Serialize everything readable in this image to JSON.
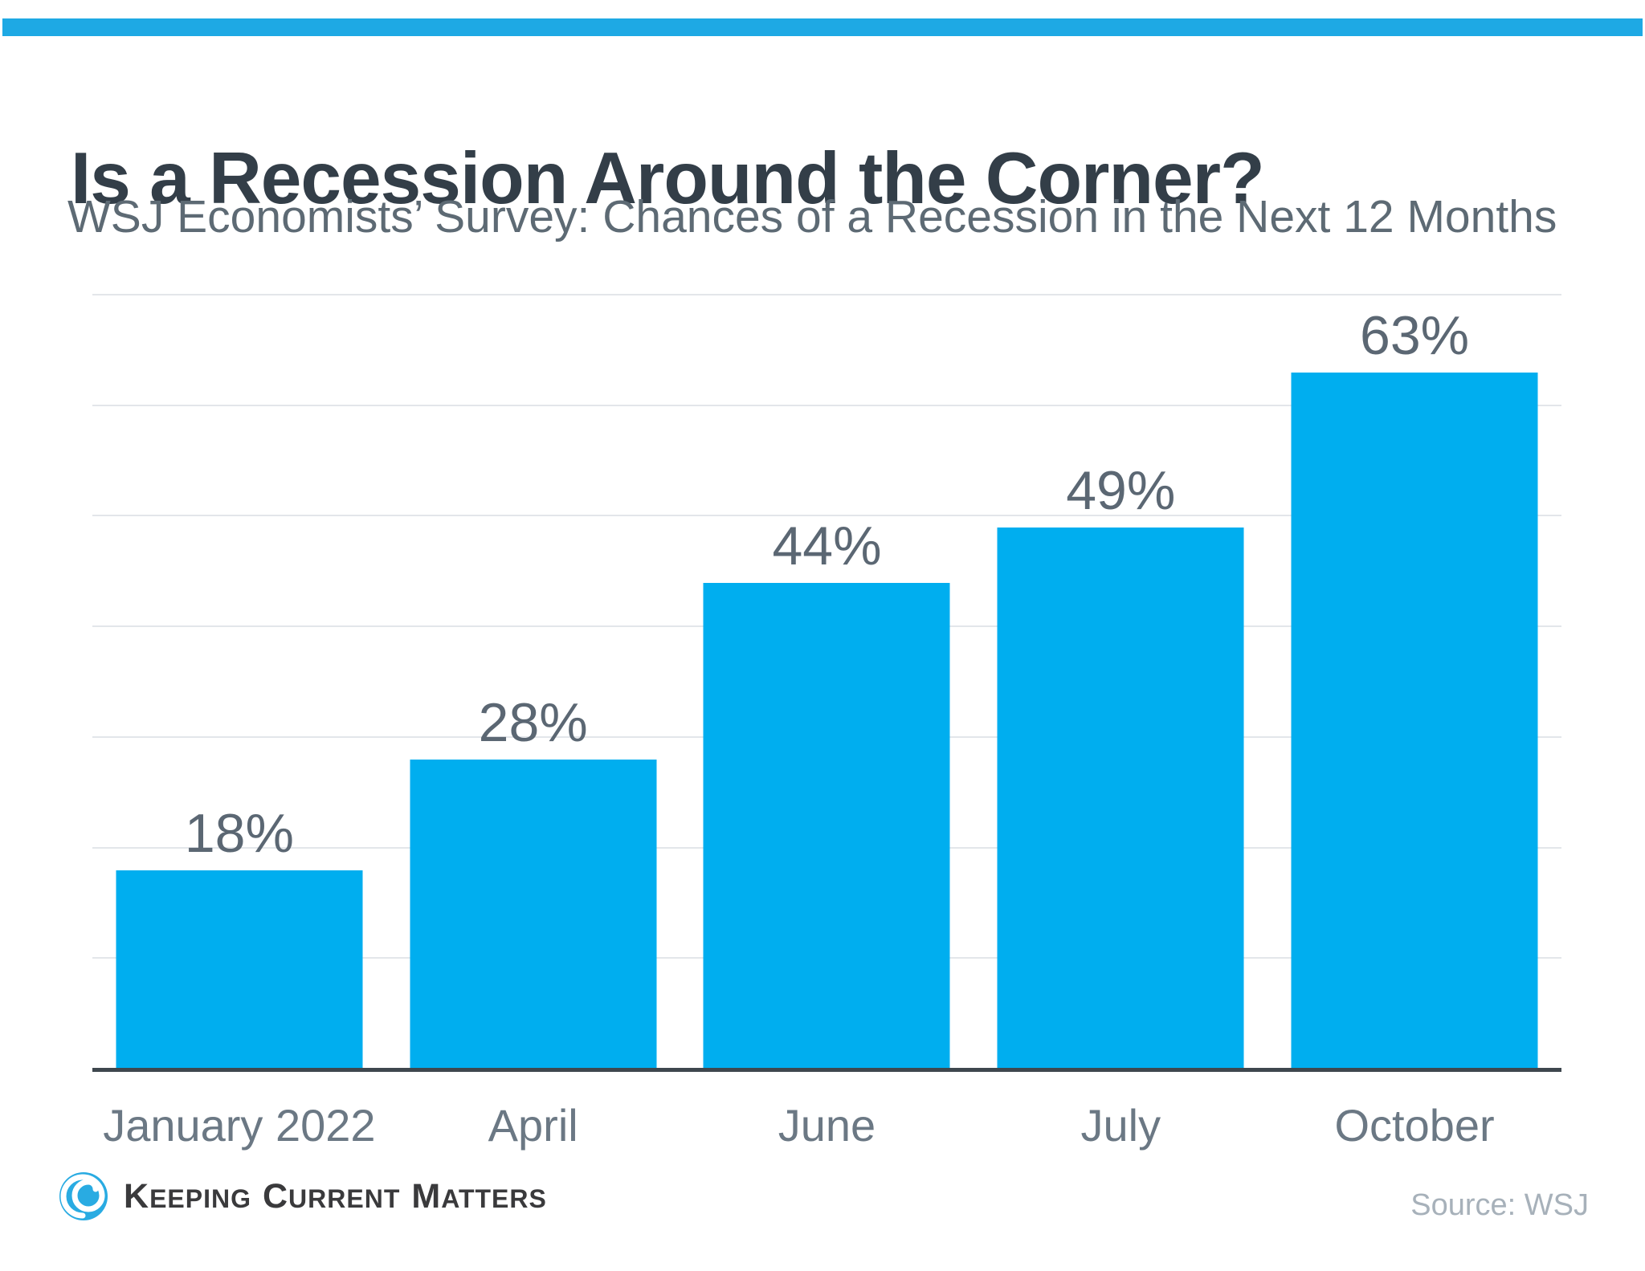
{
  "page": {
    "accent_bar_color": "#1EA9E4"
  },
  "header": {
    "title": "Is a Recession Around the Corner?",
    "subtitle": "WSJ Economists’ Survey: Chances of a Recession in the Next 12 Months"
  },
  "chart_data": {
    "type": "bar",
    "title": "Is a Recession Around the Corner?",
    "subtitle": "WSJ Economists’ Survey: Chances of a Recession in the Next 12 Months",
    "categories": [
      "January 2022",
      "April",
      "June",
      "July",
      "October"
    ],
    "values": [
      18,
      28,
      44,
      49,
      63
    ],
    "data_labels": [
      "18%",
      "28%",
      "44%",
      "49%",
      "63%"
    ],
    "xlabel": "",
    "ylabel": "",
    "ylim": [
      0,
      70
    ],
    "gridline_interval": 10,
    "grid": "horizontal-light",
    "legend": "none",
    "bar_color": "#00AEEF",
    "gridline_color": "#E3E6EA",
    "axis_color": "#3E474E"
  },
  "footer": {
    "logo": {
      "icon": "kcm-swirl-icon",
      "icon_color": "#29ABE2",
      "words": [
        {
          "initial": "K",
          "rest": "EEPING"
        },
        {
          "initial": "C",
          "rest": "URRENT"
        },
        {
          "initial": "M",
          "rest": "ATTERS"
        }
      ]
    },
    "source": "Source: WSJ"
  }
}
